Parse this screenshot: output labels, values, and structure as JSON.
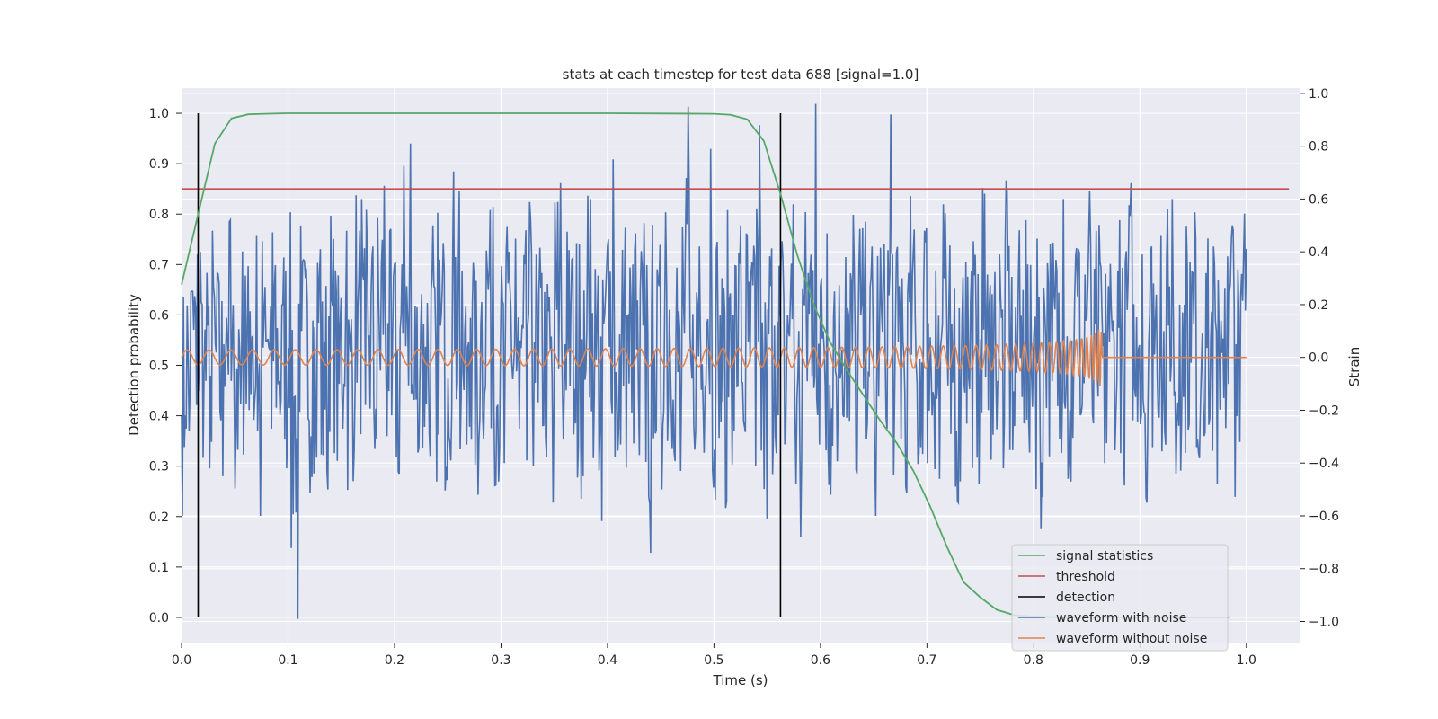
{
  "chart_data": {
    "type": "line",
    "title": "stats at each timestep for test data 688 [signal=1.0]",
    "xlabel": "Time (s)",
    "ylabel": "Detection probability",
    "y2label": "Strain",
    "xlim": [
      0.0,
      1.05
    ],
    "ylim": [
      -0.05,
      1.05
    ],
    "y2lim": [
      -1.08,
      1.02
    ],
    "xticks": [
      "0.0",
      "0.1",
      "0.2",
      "0.3",
      "0.4",
      "0.5",
      "0.6",
      "0.7",
      "0.8",
      "0.9",
      "1.0"
    ],
    "yticks": [
      "0.0",
      "0.1",
      "0.2",
      "0.3",
      "0.4",
      "0.5",
      "0.6",
      "0.7",
      "0.8",
      "0.9",
      "1.0"
    ],
    "y2ticks": [
      "−1.0",
      "−0.8",
      "−0.6",
      "−0.4",
      "−0.2",
      "0.0",
      "0.2",
      "0.4",
      "0.6",
      "0.8",
      "1.0"
    ],
    "grid": true,
    "legend_position": "lower-right",
    "colors": {
      "signal_statistics": "#55a868",
      "threshold": "#c44e52",
      "detection": "#000000",
      "waveform_with_noise": "#4c72b0",
      "waveform_without_noise": "#dd8452",
      "plot_background": "#eaeaf2"
    },
    "legend": [
      "signal statistics",
      "threshold",
      "detection",
      "waveform with noise",
      "waveform without noise"
    ],
    "series": [
      {
        "name": "signal statistics",
        "axis": "left",
        "x": [
          0.0,
          0.0156,
          0.0313,
          0.0469,
          0.0625,
          0.0781,
          0.1,
          0.2,
          0.3,
          0.4,
          0.5,
          0.5156,
          0.5313,
          0.5469,
          0.5625,
          0.5781,
          0.5938,
          0.6094,
          0.625,
          0.6406,
          0.6563,
          0.6719,
          0.6875,
          0.7031,
          0.7188,
          0.7344,
          0.75,
          0.7656,
          0.7813,
          0.7969,
          0.8125,
          0.8281,
          0.8438,
          0.8594,
          0.875,
          0.8906,
          0.9063,
          0.9219,
          0.9375,
          0.9531,
          0.9688,
          0.9844
        ],
        "values": [
          0.66,
          0.8,
          0.94,
          0.99,
          0.998,
          0.999,
          1.0,
          1.0,
          1.0,
          1.0,
          0.999,
          0.997,
          0.988,
          0.945,
          0.84,
          0.72,
          0.62,
          0.545,
          0.49,
          0.44,
          0.39,
          0.345,
          0.29,
          0.22,
          0.14,
          0.07,
          0.04,
          0.015,
          0.005,
          0.002,
          0.001,
          0.0,
          0.0,
          0.0,
          0.0,
          0.0,
          0.0,
          0.0,
          0.0,
          0.0,
          0.0,
          0.0
        ]
      },
      {
        "name": "threshold",
        "axis": "left",
        "x": [
          0.0,
          1.04
        ],
        "values": [
          0.85,
          0.85
        ]
      },
      {
        "name": "detection",
        "axis": "left",
        "x": [
          0.0156,
          0.5625
        ],
        "values": [
          1.0,
          1.0
        ]
      },
      {
        "name": "waveform with noise",
        "axis": "right",
        "x_range": [
          0.0,
          1.0
        ],
        "amplitude_range": [
          -1.0,
          1.0
        ],
        "values": [
          -0.22,
          -0.28,
          0.25,
          -0.18,
          0.4,
          -0.05,
          0.12,
          -0.32,
          0.05,
          0.28,
          -0.45,
          0.15,
          0.52,
          -0.12,
          -0.35,
          0.02,
          0.31,
          -0.2,
          0.08,
          0.46,
          -0.6,
          0.18,
          0.07,
          -0.27,
          0.35,
          -0.09,
          0.2,
          -0.42,
          0.55,
          -0.15,
          -0.99,
          0.1,
          0.3,
          -0.24,
          0.14,
          -0.38,
          0.41,
          0.06,
          -0.5,
          0.22,
          0.33,
          -0.1,
          -0.27,
          0.48,
          0.02,
          -0.35,
          0.19,
          0.6,
          -0.18,
          0.08,
          0.42,
          -0.31,
          -0.05,
          0.65,
          0.13,
          -0.22,
          0.36,
          -0.44,
          0.09,
          0.27,
          0.81,
          -0.16,
          -0.36,
          0.24,
          0.04,
          -0.29,
          0.5,
          -0.47,
          0.12,
          0.33,
          -0.08,
          -0.21,
          0.38,
          0.63,
          -0.06,
          -0.33,
          0.15,
          0.29,
          -0.52,
          0.21,
          -0.11,
          0.34,
          0.57,
          -0.19,
          0.06,
          -0.4,
          0.28,
          -0.02,
          0.45,
          -0.27,
          0.11,
          -0.39,
          0.53,
          0.06,
          -0.17,
          0.32,
          -0.3,
          0.23,
          -0.55,
          0.18,
          0.66,
          -0.12,
          0.02,
          0.37,
          -0.25,
          0.43,
          -0.45,
          0.1,
          0.6,
          -0.13,
          0.31,
          -0.62,
          0.24,
          0.04,
          0.75,
          -0.1,
          -0.33,
          0.26,
          0.16,
          -0.21,
          0.47,
          -0.37,
          0.12,
          0.35,
          -0.74,
          0.02,
          0.29,
          -0.5,
          0.55,
          0.18,
          -0.16,
          0.34,
          -0.43,
          0.09,
          0.95,
          -0.08,
          -0.28,
          0.42,
          -0.2,
          0.13,
          0.79,
          -0.35,
          0.05,
          0.3,
          -0.57,
          0.22,
          0.16,
          -0.11,
          0.5,
          -0.26,
          0.06,
          0.36,
          -0.41,
          0.88,
          -0.04,
          -0.61,
          0.27,
          0.12,
          -0.22,
          0.44,
          -0.3,
          0.08,
          0.58,
          -0.15,
          -0.68,
          0.2,
          0.32,
          -0.07,
          0.96,
          -0.33,
          0.1,
          0.47,
          -0.52,
          0.25,
          -0.14,
          0.03,
          0.38,
          -0.24,
          0.54,
          -0.44,
          0.16,
          0.29,
          -0.06,
          0.42,
          -0.6,
          0.1,
          0.35,
          -0.27,
          0.92,
          -0.18,
          0.06,
          0.3,
          -0.49,
          0.21,
          0.4,
          -0.1,
          -0.34,
          0.48,
          0.13,
          -0.22,
          0.33,
          -0.46,
          0.58,
          0.05,
          -0.29,
          0.26,
          -0.55,
          0.15,
          0.36,
          -0.12,
          0.44,
          -0.38,
          0.07,
          0.62,
          -0.2,
          0.24,
          -0.06,
          0.39,
          -0.42,
          0.63,
          0.11,
          -0.26,
          0.3,
          -0.15,
          0.52,
          -0.36,
          0.04,
          0.45,
          -0.65,
          0.19,
          0.28,
          -0.09,
          0.37,
          -0.31,
          0.6,
          0.08,
          -0.47,
          0.22,
          0.41,
          -0.18,
          0.14,
          0.63,
          -0.25,
          -0.05,
          0.34,
          -0.4,
          0.27,
          0.1,
          -0.21,
          0.52,
          -0.33,
          0.18,
          0.66,
          -0.12,
          0.03,
          0.39,
          -0.53,
          0.16,
          0.28,
          -0.07,
          0.46,
          -0.28,
          0.12,
          0.6,
          -0.44,
          0.2,
          -0.15,
          0.35,
          -0.02,
          0.55,
          -0.36,
          0.09,
          0.32,
          -0.23,
          0.42,
          -0.48,
          0.14,
          0.26,
          -0.1,
          0.5,
          0.05,
          -0.32,
          0.38,
          0.63
        ]
      },
      {
        "name": "waveform without noise",
        "axis": "right",
        "x_range": [
          0.0,
          1.0
        ],
        "merger_time": 0.865,
        "peak_amplitude": 0.12
      }
    ]
  }
}
